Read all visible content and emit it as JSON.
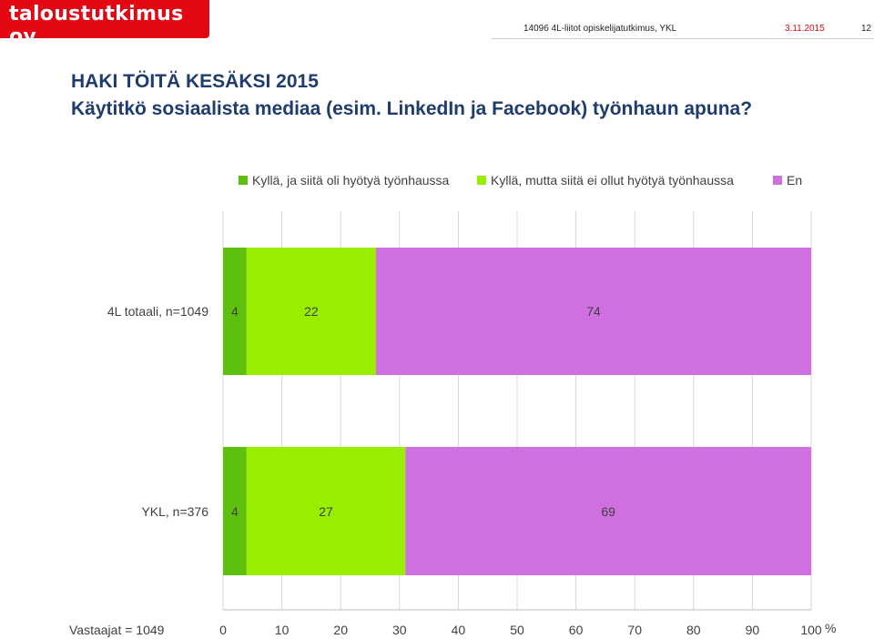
{
  "header": {
    "logo": "taloustutkimus oy",
    "project": "14096 4L-liitot opiskelijatutkimus, YKL",
    "date": "3.11.2015",
    "page": "12"
  },
  "title": {
    "line1": "HAKI TÖITÄ KESÄKSI 2015",
    "line2": "Käytitkö sosiaalista mediaa (esim. LinkedIn ja Facebook) työnhaun apuna?"
  },
  "footnote": "Vastaajat = 1049",
  "colors": {
    "dark_green": "#5dbf0e",
    "light_green": "#99ee00",
    "purple": "#d070e0"
  },
  "chart_data": {
    "type": "bar",
    "orientation": "horizontal",
    "stacked": true,
    "categories": [
      "4L totaali, n=1049",
      "YKL, n=376"
    ],
    "series": [
      {
        "name": "Kyllä, ja siitä oli hyötyä työnhaussa",
        "values": [
          4,
          4
        ],
        "color": "#5dbf0e"
      },
      {
        "name": "Kyllä, mutta siitä ei ollut hyötyä työnhaussa",
        "values": [
          22,
          27
        ],
        "color": "#99ee00"
      },
      {
        "name": "En",
        "values": [
          74,
          69
        ],
        "color": "#d070e0"
      }
    ],
    "xlim": [
      0,
      100
    ],
    "xticks": [
      "0",
      "10",
      "20",
      "30",
      "40",
      "50",
      "60",
      "70",
      "80",
      "90",
      "100"
    ],
    "xunit": "%",
    "grid": true,
    "legend": "top"
  }
}
